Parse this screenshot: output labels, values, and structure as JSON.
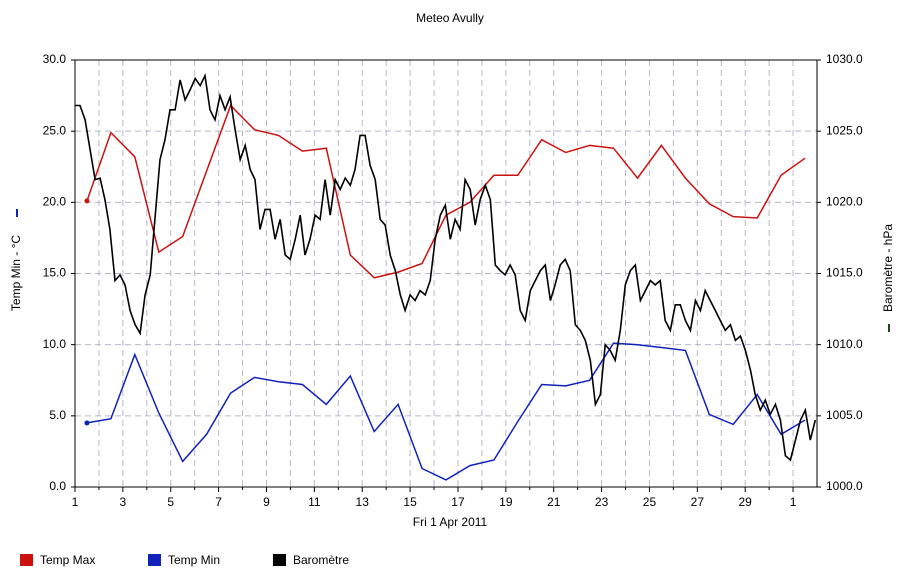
{
  "chart_data": {
    "type": "line",
    "title": "Meteo  Avully",
    "xlabel": "Fri 1 Apr 2011",
    "ylabel": "Temp Min - °C",
    "y2label": "Baromètre - hPa",
    "xlim": [
      1,
      32
    ],
    "xticks": [
      1,
      3,
      5,
      7,
      9,
      11,
      13,
      15,
      17,
      19,
      21,
      23,
      25,
      27,
      29,
      {
        "value": 31,
        "label": "1"
      }
    ],
    "xminorticks": [
      2,
      4,
      6,
      8,
      10,
      12,
      14,
      16,
      18,
      20,
      22,
      24,
      26,
      28,
      30
    ],
    "ylim": [
      0,
      30
    ],
    "yticks": [
      {
        "value": 0,
        "label": "0.0"
      },
      {
        "value": 5,
        "label": "5.0"
      },
      {
        "value": 10,
        "label": "10.0"
      },
      {
        "value": 15,
        "label": "15.0"
      },
      {
        "value": 20,
        "label": "20.0"
      },
      {
        "value": 25,
        "label": "25.0"
      },
      {
        "value": 30,
        "label": "30.0"
      }
    ],
    "y2lim": [
      1000,
      1030
    ],
    "y2ticks": [
      {
        "value": 1000,
        "label": "1000.0"
      },
      {
        "value": 1005,
        "label": "1005.0"
      },
      {
        "value": 1010,
        "label": "1010.0"
      },
      {
        "value": 1015,
        "label": "1015.0"
      },
      {
        "value": 1020,
        "label": "1020.0"
      },
      {
        "value": 1025,
        "label": "1025.0"
      },
      {
        "value": 1030,
        "label": "1030.0"
      }
    ],
    "grid": true,
    "legend": "bottom",
    "series": [
      {
        "name": "Temp Max",
        "color": "#cc1111",
        "x": [
          1.5,
          2.5,
          3.5,
          4.5,
          5.5,
          6.5,
          7.5,
          8.5,
          9.5,
          10.5,
          11.5,
          12.5,
          13.5,
          14.5,
          15.5,
          16.5,
          17.5,
          18.5,
          19.5,
          20.5,
          21.5,
          22.5,
          23.5,
          24.5,
          25.5,
          26.5,
          27.5,
          28.5,
          29.5,
          30.5,
          31.5
        ],
        "values": [
          20.1,
          24.9,
          23.2,
          16.5,
          17.6,
          22.2,
          26.8,
          25.1,
          24.7,
          23.6,
          23.8,
          16.3,
          14.7,
          15.1,
          15.7,
          19.1,
          20.0,
          21.9,
          21.9,
          24.4,
          23.5,
          24.0,
          23.8,
          21.7,
          24.0,
          21.7,
          19.9,
          19.0,
          18.9,
          21.9,
          23.1
        ]
      },
      {
        "name": "Temp Min",
        "color": "#1122bb",
        "x": [
          1.5,
          2.5,
          3.5,
          4.5,
          5.5,
          6.5,
          7.5,
          8.5,
          9.5,
          10.5,
          11.5,
          12.5,
          13.5,
          14.5,
          15.5,
          16.5,
          17.5,
          18.5,
          19.5,
          20.5,
          21.5,
          22.5,
          23.5,
          24.5,
          25.5,
          26.5,
          27.5,
          28.5,
          29.5,
          30.5,
          31.5
        ],
        "values": [
          4.5,
          4.8,
          9.3,
          5.2,
          1.8,
          3.7,
          6.6,
          7.7,
          7.4,
          7.2,
          5.8,
          7.8,
          3.9,
          5.8,
          1.3,
          0.5,
          1.5,
          1.9,
          4.6,
          7.2,
          7.1,
          7.5,
          10.1,
          10.0,
          9.8,
          9.6,
          5.1,
          4.4,
          6.5,
          3.7,
          4.7
        ]
      },
      {
        "name": "Baromètre",
        "color": "#000000",
        "axis": "y2",
        "x": [
          1.0,
          1.21,
          1.42,
          1.63,
          1.84,
          2.05,
          2.25,
          2.46,
          2.67,
          2.88,
          3.09,
          3.3,
          3.51,
          3.72,
          3.93,
          4.14,
          4.34,
          4.55,
          4.76,
          4.97,
          5.18,
          5.39,
          5.6,
          5.81,
          6.02,
          6.23,
          6.43,
          6.64,
          6.85,
          7.06,
          7.27,
          7.48,
          7.69,
          7.9,
          8.11,
          8.32,
          8.52,
          8.73,
          8.94,
          9.15,
          9.36,
          9.57,
          9.78,
          9.99,
          10.2,
          10.41,
          10.61,
          10.82,
          11.03,
          11.24,
          11.45,
          11.66,
          11.87,
          12.08,
          12.29,
          12.5,
          12.7,
          12.91,
          13.12,
          13.33,
          13.54,
          13.75,
          13.96,
          14.17,
          14.38,
          14.59,
          14.79,
          15.0,
          15.21,
          15.42,
          15.63,
          15.84,
          16.05,
          16.26,
          16.47,
          16.68,
          16.88,
          17.09,
          17.3,
          17.51,
          17.72,
          17.93,
          18.14,
          18.35,
          18.56,
          18.77,
          18.97,
          19.18,
          19.39,
          19.6,
          19.81,
          20.02,
          20.23,
          20.44,
          20.65,
          20.86,
          21.06,
          21.27,
          21.48,
          21.69,
          21.9,
          22.11,
          22.32,
          22.53,
          22.74,
          22.95,
          23.15,
          23.36,
          23.57,
          23.78,
          23.99,
          24.2,
          24.41,
          24.62,
          24.83,
          25.04,
          25.24,
          25.45,
          25.66,
          25.87,
          26.08,
          26.29,
          26.5,
          26.71,
          26.92,
          27.13,
          27.33,
          27.54,
          27.75,
          27.96,
          28.17,
          28.38,
          28.59,
          28.8,
          29.01,
          29.22,
          29.42,
          29.63,
          29.84,
          30.05,
          30.26,
          30.47,
          30.68,
          30.89,
          31.1,
          31.31,
          31.51,
          31.72,
          31.93
        ],
        "values": [
          1026.8,
          1026.8,
          1025.8,
          1023.7,
          1021.6,
          1021.7,
          1020.2,
          1018.1,
          1014.5,
          1014.9,
          1014.2,
          1012.4,
          1011.4,
          1010.8,
          1013.5,
          1014.9,
          1018.8,
          1023.0,
          1024.4,
          1026.5,
          1026.5,
          1028.6,
          1027.2,
          1027.9,
          1028.7,
          1028.2,
          1028.9,
          1026.5,
          1025.8,
          1027.5,
          1026.5,
          1027.4,
          1025.1,
          1023.0,
          1024.0,
          1022.3,
          1021.6,
          1018.1,
          1019.5,
          1019.5,
          1017.4,
          1018.8,
          1016.3,
          1016.0,
          1017.4,
          1019.1,
          1016.3,
          1017.4,
          1019.1,
          1018.8,
          1021.6,
          1019.1,
          1021.6,
          1020.9,
          1021.7,
          1021.2,
          1022.3,
          1024.7,
          1024.7,
          1022.6,
          1021.6,
          1018.8,
          1018.4,
          1016.3,
          1015.2,
          1013.5,
          1012.4,
          1013.5,
          1013.1,
          1013.8,
          1013.5,
          1014.5,
          1017.4,
          1019.1,
          1019.8,
          1017.4,
          1018.8,
          1018.1,
          1021.6,
          1020.9,
          1018.4,
          1020.2,
          1021.2,
          1020.2,
          1015.6,
          1015.2,
          1014.9,
          1015.6,
          1014.9,
          1012.4,
          1011.7,
          1013.8,
          1014.5,
          1015.2,
          1015.6,
          1013.1,
          1014.2,
          1015.6,
          1016.0,
          1015.2,
          1011.4,
          1011.0,
          1010.3,
          1008.9,
          1005.8,
          1006.5,
          1010.0,
          1009.6,
          1008.9,
          1011.0,
          1014.2,
          1015.2,
          1015.6,
          1013.1,
          1013.8,
          1014.5,
          1014.2,
          1014.5,
          1011.7,
          1011.0,
          1012.8,
          1012.8,
          1011.7,
          1011.0,
          1013.1,
          1012.4,
          1013.8,
          1013.1,
          1012.4,
          1011.7,
          1011.0,
          1011.4,
          1010.3,
          1010.6,
          1009.6,
          1008.2,
          1006.5,
          1005.4,
          1006.1,
          1005.1,
          1005.8,
          1004.7,
          1002.2,
          1001.9,
          1003.3,
          1004.7,
          1005.4,
          1003.3,
          1004.7
        ]
      }
    ]
  }
}
